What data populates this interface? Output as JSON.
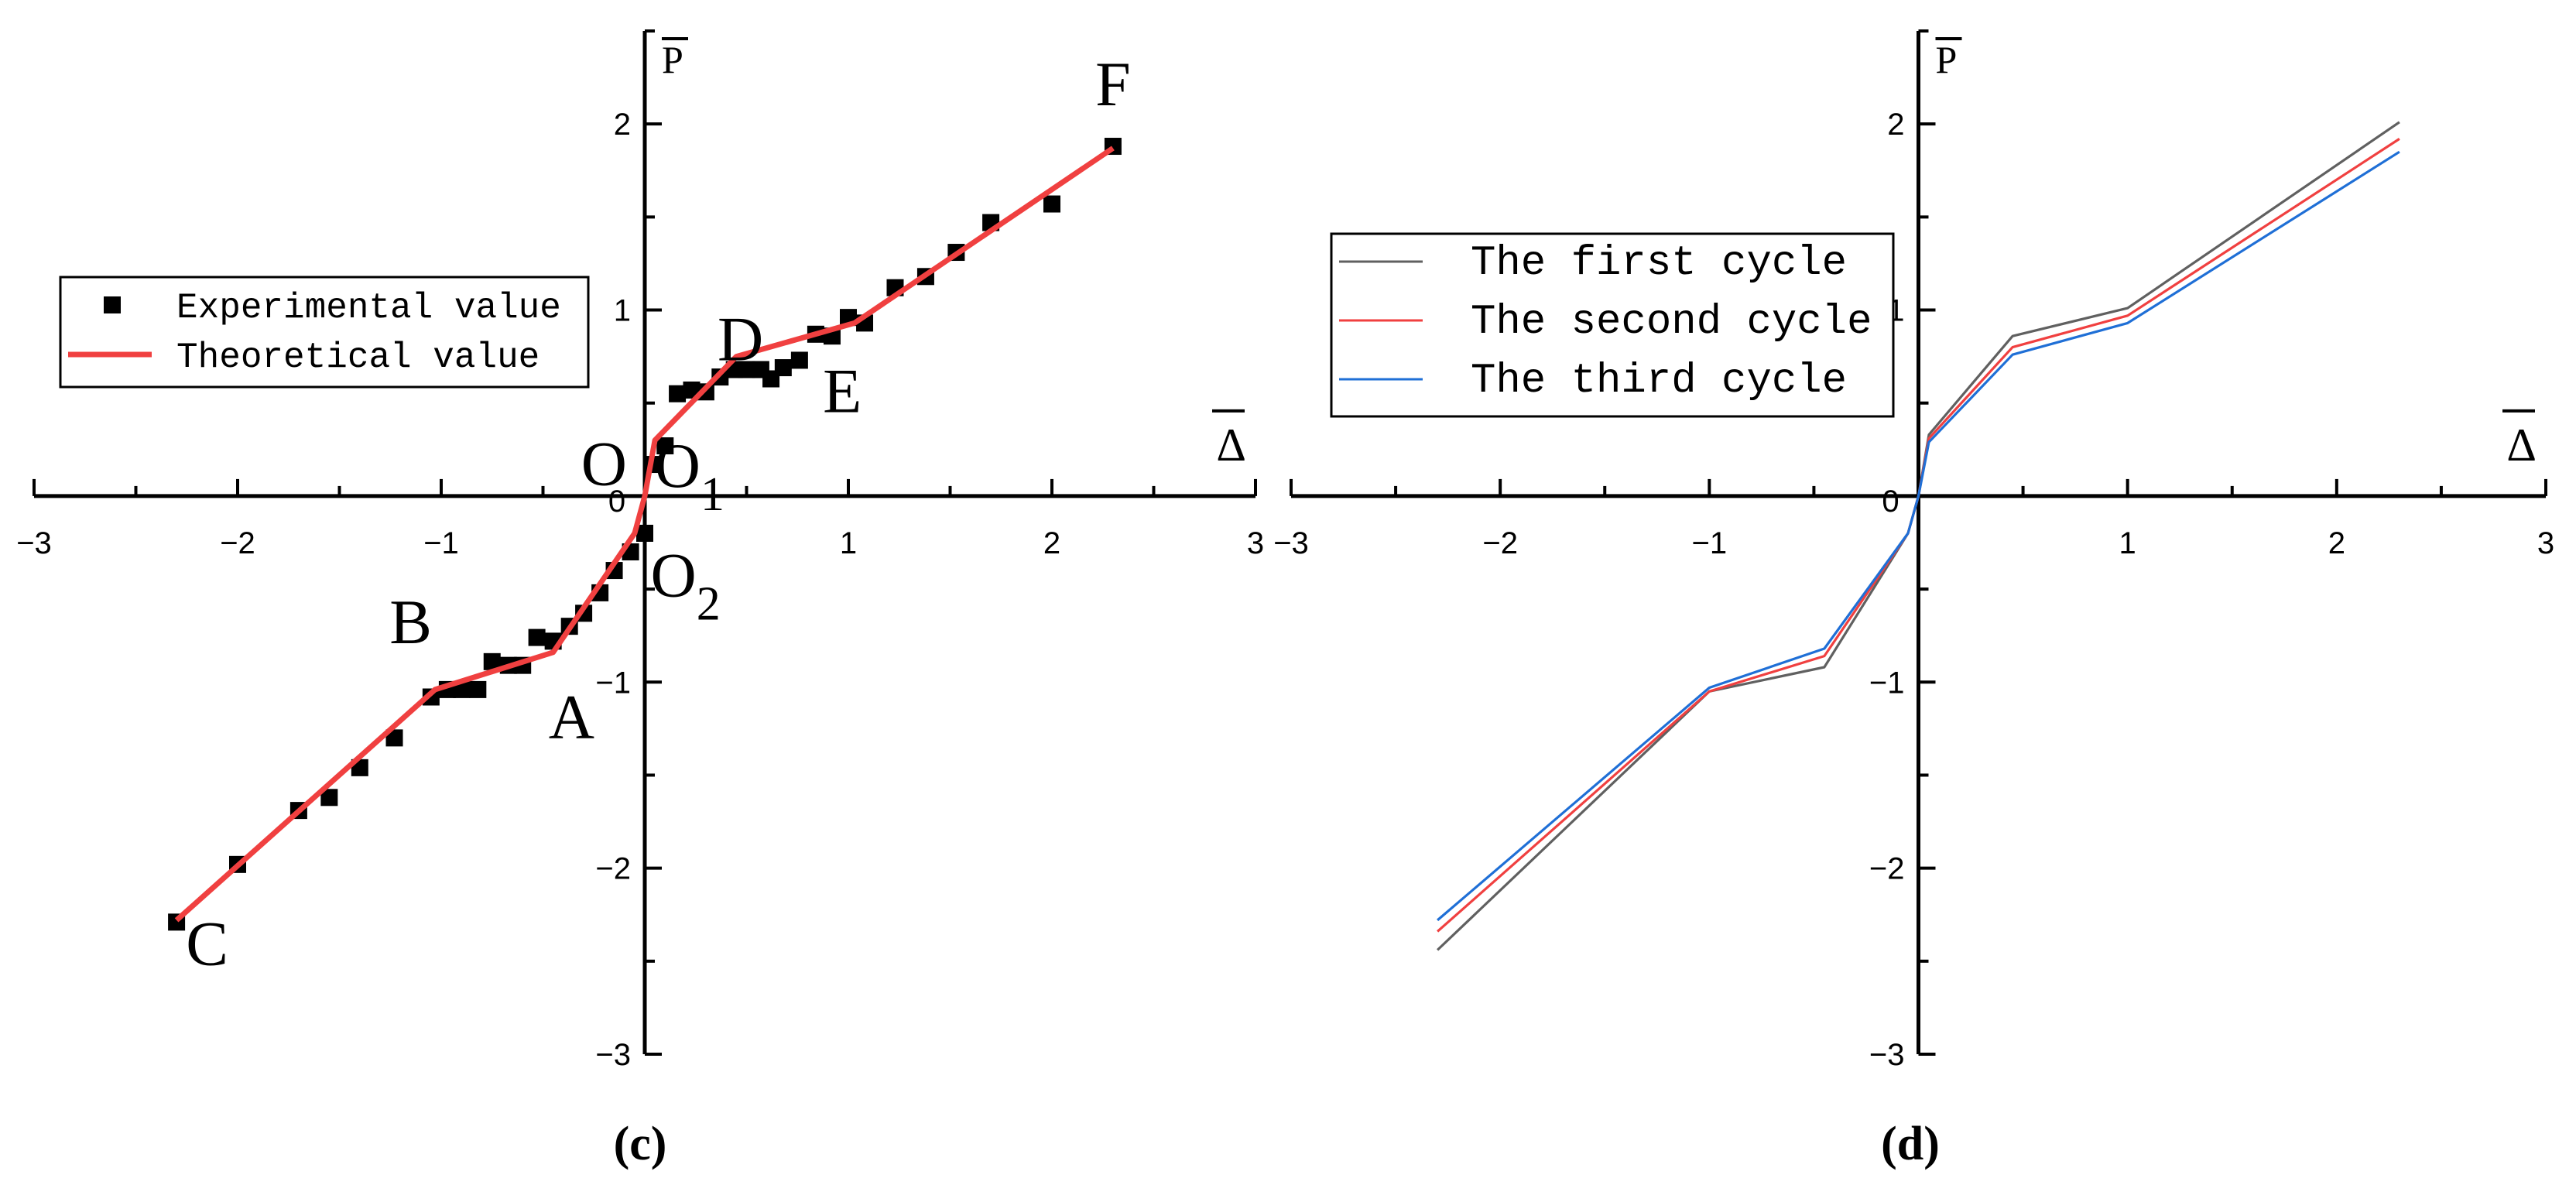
{
  "chart_data": [
    {
      "panel_label": "(c)",
      "type": "line",
      "xlabel": "Δ",
      "ylabel": "P",
      "xlim": [
        -3,
        3
      ],
      "ylim": [
        -3,
        2.5
      ],
      "x_ticks": [
        -3,
        -2,
        -1,
        0,
        1,
        2,
        3
      ],
      "y_ticks": [
        -3,
        -2,
        -1,
        1,
        2
      ],
      "x_tick_labels": [
        "−3",
        "−2",
        "−1",
        "0",
        "1",
        "2",
        "3"
      ],
      "y_tick_labels": [
        "−3",
        "−2",
        "−1",
        "1",
        "2"
      ],
      "grid": false,
      "legend_position": "upper-left",
      "series": [
        {
          "name": "Experimental value",
          "type": "scatter",
          "color": "#000000",
          "marker": "square",
          "points": [
            [
              -2.3,
              -2.29
            ],
            [
              -2.0,
              -1.98
            ],
            [
              -1.7,
              -1.69
            ],
            [
              -1.55,
              -1.62
            ],
            [
              -1.4,
              -1.46
            ],
            [
              -1.23,
              -1.3
            ],
            [
              -1.05,
              -1.08
            ],
            [
              -0.97,
              -1.04
            ],
            [
              -0.9,
              -1.04
            ],
            [
              -0.82,
              -1.04
            ],
            [
              -0.75,
              -0.89
            ],
            [
              -0.67,
              -0.91
            ],
            [
              -0.6,
              -0.91
            ],
            [
              -0.53,
              -0.76
            ],
            [
              -0.45,
              -0.78
            ],
            [
              -0.37,
              -0.7
            ],
            [
              -0.3,
              -0.63
            ],
            [
              -0.22,
              -0.52
            ],
            [
              -0.15,
              -0.4
            ],
            [
              -0.07,
              -0.3
            ],
            [
              0.0,
              -0.2
            ],
            [
              0.05,
              0.17
            ],
            [
              0.1,
              0.27
            ],
            [
              0.16,
              0.55
            ],
            [
              0.23,
              0.57
            ],
            [
              0.3,
              0.56
            ],
            [
              0.37,
              0.64
            ],
            [
              0.44,
              0.68
            ],
            [
              0.5,
              0.68
            ],
            [
              0.57,
              0.68
            ],
            [
              0.62,
              0.63
            ],
            [
              0.68,
              0.69
            ],
            [
              0.76,
              0.73
            ],
            [
              0.84,
              0.87
            ],
            [
              0.92,
              0.86
            ],
            [
              1.0,
              0.96
            ],
            [
              1.08,
              0.93
            ],
            [
              1.23,
              1.12
            ],
            [
              1.38,
              1.18
            ],
            [
              1.53,
              1.31
            ],
            [
              1.7,
              1.47
            ],
            [
              2.0,
              1.57
            ],
            [
              2.3,
              1.88
            ]
          ]
        },
        {
          "name": "Theoretical value",
          "type": "line",
          "color": "#f04040",
          "points": [
            [
              -2.3,
              -2.28
            ],
            [
              -1.03,
              -1.04
            ],
            [
              -0.45,
              -0.84
            ],
            [
              -0.05,
              -0.2
            ],
            [
              0.0,
              0.0
            ],
            [
              0.05,
              0.3
            ],
            [
              0.45,
              0.75
            ],
            [
              1.03,
              0.93
            ],
            [
              2.3,
              1.87
            ]
          ]
        }
      ],
      "annotations": [
        {
          "text": "F",
          "x": 2.3,
          "y": 2.1
        },
        {
          "text": "D",
          "x": 0.47,
          "y": 0.73
        },
        {
          "text": "E",
          "x": 0.97,
          "y": 0.45
        },
        {
          "text": "O",
          "x": -0.2,
          "y": 0.06
        },
        {
          "text": "O",
          "sub": "1",
          "x": 0.22,
          "y": 0.05
        },
        {
          "text": "O",
          "sub": "2",
          "x": 0.2,
          "y": -0.54
        },
        {
          "text": "B",
          "x": -1.15,
          "y": -0.79
        },
        {
          "text": "A",
          "x": -0.36,
          "y": -1.3
        },
        {
          "text": "C",
          "x": -2.15,
          "y": -2.52
        }
      ]
    },
    {
      "panel_label": "(d)",
      "type": "line",
      "xlabel": "Δ",
      "ylabel": "P",
      "xlim": [
        -3,
        3
      ],
      "ylim": [
        -3,
        2.5
      ],
      "x_ticks": [
        -3,
        -2,
        -1,
        0,
        1,
        2,
        3
      ],
      "y_ticks": [
        -3,
        -2,
        -1,
        1,
        2
      ],
      "x_tick_labels": [
        "−3",
        "−2",
        "−1",
        "0",
        "1",
        "2",
        "3"
      ],
      "y_tick_labels": [
        "−3",
        "−2",
        "−1",
        "1",
        "2"
      ],
      "grid": false,
      "legend_position": "upper-left",
      "series": [
        {
          "name": "The first cycle",
          "color": "#606060",
          "points": [
            [
              -2.3,
              -2.44
            ],
            [
              -1.0,
              -1.05
            ],
            [
              -0.45,
              -0.92
            ],
            [
              -0.05,
              -0.2
            ],
            [
              0.0,
              0.0
            ],
            [
              0.05,
              0.33
            ],
            [
              0.45,
              0.86
            ],
            [
              1.0,
              1.01
            ],
            [
              2.3,
              2.01
            ]
          ]
        },
        {
          "name": "The second cycle",
          "color": "#f04040",
          "points": [
            [
              -2.3,
              -2.34
            ],
            [
              -1.0,
              -1.05
            ],
            [
              -0.45,
              -0.86
            ],
            [
              -0.05,
              -0.2
            ],
            [
              0.0,
              0.0
            ],
            [
              0.05,
              0.31
            ],
            [
              0.45,
              0.8
            ],
            [
              1.0,
              0.97
            ],
            [
              2.3,
              1.92
            ]
          ]
        },
        {
          "name": "The third cycle",
          "color": "#1f6fd6",
          "points": [
            [
              -2.3,
              -2.28
            ],
            [
              -1.0,
              -1.03
            ],
            [
              -0.45,
              -0.82
            ],
            [
              -0.05,
              -0.2
            ],
            [
              0.0,
              0.0
            ],
            [
              0.05,
              0.29
            ],
            [
              0.45,
              0.76
            ],
            [
              1.0,
              0.93
            ],
            [
              2.3,
              1.85
            ]
          ]
        }
      ],
      "annotations": []
    }
  ]
}
